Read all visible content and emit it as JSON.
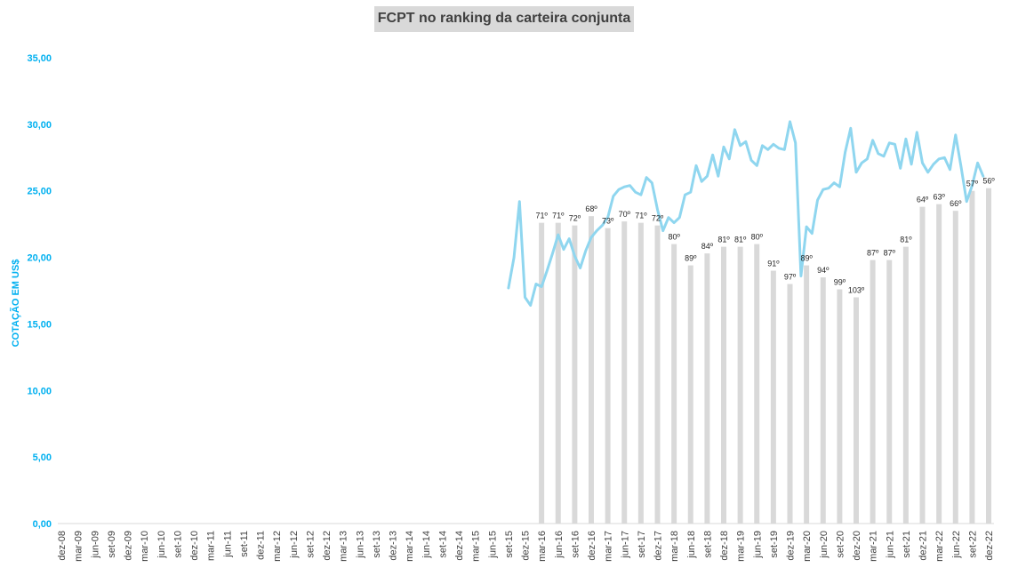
{
  "chart_data": {
    "type": "bar+line",
    "title": "FCPT no ranking da carteira conjunta",
    "ylabel": "COTAÇÃO EM US$",
    "ylim": [
      0,
      35
    ],
    "y_ticks": [
      "0,00",
      "5,00",
      "10,00",
      "15,00",
      "20,00",
      "25,00",
      "30,00",
      "35,00"
    ],
    "x_start": "2008-12",
    "x_end": "2022-12",
    "x_tick_labels": [
      "dez-08",
      "mar-09",
      "jun-09",
      "set-09",
      "dez-09",
      "mar-10",
      "jun-10",
      "set-10",
      "dez-10",
      "mar-11",
      "jun-11",
      "set-11",
      "dez-11",
      "mar-12",
      "jun-12",
      "set-12",
      "dez-12",
      "mar-13",
      "jun-13",
      "set-13",
      "dez-13",
      "mar-14",
      "jun-14",
      "set-14",
      "dez-14",
      "mar-15",
      "jun-15",
      "set-15",
      "dez-15",
      "mar-16",
      "jun-16",
      "set-16",
      "dez-16",
      "mar-17",
      "jun-17",
      "set-17",
      "dez-17",
      "mar-18",
      "jun-18",
      "set-18",
      "dez-18",
      "mar-19",
      "jun-19",
      "set-19",
      "dez-19",
      "mar-20",
      "jun-20",
      "set-20",
      "dez-20",
      "mar-21",
      "jun-21",
      "set-21",
      "dez-21",
      "mar-22",
      "jun-22",
      "set-22",
      "dez-22"
    ],
    "colors": {
      "axis_text": "#00b0f0",
      "line": "#8fd6ef",
      "bar": "#d9d9d9",
      "label": "#262626",
      "title_bg": "#d9d9d9"
    },
    "bars": [
      {
        "x": "2016-03",
        "value": 22.6,
        "label": "71º"
      },
      {
        "x": "2016-06",
        "value": 22.6,
        "label": "71º"
      },
      {
        "x": "2016-09",
        "value": 22.4,
        "label": "72º"
      },
      {
        "x": "2016-12",
        "value": 23.1,
        "label": "68º"
      },
      {
        "x": "2017-03",
        "value": 22.2,
        "label": "73º"
      },
      {
        "x": "2017-06",
        "value": 22.7,
        "label": "70º"
      },
      {
        "x": "2017-09",
        "value": 22.6,
        "label": "71º"
      },
      {
        "x": "2017-12",
        "value": 22.4,
        "label": "72º"
      },
      {
        "x": "2018-03",
        "value": 21.0,
        "label": "80º"
      },
      {
        "x": "2018-06",
        "value": 19.4,
        "label": "89º"
      },
      {
        "x": "2018-09",
        "value": 20.3,
        "label": "84º"
      },
      {
        "x": "2018-12",
        "value": 20.8,
        "label": "81º"
      },
      {
        "x": "2019-03",
        "value": 20.8,
        "label": "81º"
      },
      {
        "x": "2019-06",
        "value": 21.0,
        "label": "80º"
      },
      {
        "x": "2019-09",
        "value": 19.0,
        "label": "91º"
      },
      {
        "x": "2019-12",
        "value": 18.0,
        "label": "97º"
      },
      {
        "x": "2020-03",
        "value": 19.4,
        "label": "89º"
      },
      {
        "x": "2020-06",
        "value": 18.5,
        "label": "94º"
      },
      {
        "x": "2020-09",
        "value": 17.6,
        "label": "99º"
      },
      {
        "x": "2020-12",
        "value": 17.0,
        "label": "103º"
      },
      {
        "x": "2021-03",
        "value": 19.8,
        "label": "87º"
      },
      {
        "x": "2021-06",
        "value": 19.8,
        "label": "87º"
      },
      {
        "x": "2021-09",
        "value": 20.8,
        "label": "81º"
      },
      {
        "x": "2021-12",
        "value": 23.8,
        "label": "64º"
      },
      {
        "x": "2022-03",
        "value": 24.0,
        "label": "63º"
      },
      {
        "x": "2022-06",
        "value": 23.5,
        "label": "66º"
      },
      {
        "x": "2022-09",
        "value": 25.0,
        "label": "57º"
      },
      {
        "x": "2022-12",
        "value": 25.2,
        "label": "56º"
      }
    ],
    "line": [
      [
        "2015-09",
        17.7
      ],
      [
        "2015-10",
        20.0
      ],
      [
        "2015-11",
        24.2
      ],
      [
        "2015-12",
        17.0
      ],
      [
        "2016-01",
        16.4
      ],
      [
        "2016-02",
        18.0
      ],
      [
        "2016-03",
        17.8
      ],
      [
        "2016-04",
        19.0
      ],
      [
        "2016-05",
        20.3
      ],
      [
        "2016-06",
        21.7
      ],
      [
        "2016-07",
        20.6
      ],
      [
        "2016-08",
        21.4
      ],
      [
        "2016-09",
        20.1
      ],
      [
        "2016-10",
        19.2
      ],
      [
        "2016-11",
        20.5
      ],
      [
        "2016-12",
        21.5
      ],
      [
        "2017-01",
        22.0
      ],
      [
        "2017-02",
        22.4
      ],
      [
        "2017-03",
        23.0
      ],
      [
        "2017-04",
        24.6
      ],
      [
        "2017-05",
        25.1
      ],
      [
        "2017-06",
        25.3
      ],
      [
        "2017-07",
        25.4
      ],
      [
        "2017-08",
        24.9
      ],
      [
        "2017-09",
        24.7
      ],
      [
        "2017-10",
        26.0
      ],
      [
        "2017-11",
        25.6
      ],
      [
        "2017-12",
        23.6
      ],
      [
        "2018-01",
        22.0
      ],
      [
        "2018-02",
        23.0
      ],
      [
        "2018-03",
        22.6
      ],
      [
        "2018-04",
        23.0
      ],
      [
        "2018-05",
        24.7
      ],
      [
        "2018-06",
        24.9
      ],
      [
        "2018-07",
        26.9
      ],
      [
        "2018-08",
        25.7
      ],
      [
        "2018-09",
        26.1
      ],
      [
        "2018-10",
        27.7
      ],
      [
        "2018-11",
        26.1
      ],
      [
        "2018-12",
        28.3
      ],
      [
        "2019-01",
        27.4
      ],
      [
        "2019-02",
        29.6
      ],
      [
        "2019-03",
        28.4
      ],
      [
        "2019-04",
        28.7
      ],
      [
        "2019-05",
        27.3
      ],
      [
        "2019-06",
        26.9
      ],
      [
        "2019-07",
        28.4
      ],
      [
        "2019-08",
        28.1
      ],
      [
        "2019-09",
        28.5
      ],
      [
        "2019-10",
        28.2
      ],
      [
        "2019-11",
        28.1
      ],
      [
        "2019-12",
        30.2
      ],
      [
        "2020-01",
        28.6
      ],
      [
        "2020-02",
        18.6
      ],
      [
        "2020-03",
        22.3
      ],
      [
        "2020-04",
        21.8
      ],
      [
        "2020-05",
        24.3
      ],
      [
        "2020-06",
        25.1
      ],
      [
        "2020-07",
        25.2
      ],
      [
        "2020-08",
        25.6
      ],
      [
        "2020-09",
        25.3
      ],
      [
        "2020-10",
        27.9
      ],
      [
        "2020-11",
        29.7
      ],
      [
        "2020-12",
        26.4
      ],
      [
        "2021-01",
        27.1
      ],
      [
        "2021-02",
        27.4
      ],
      [
        "2021-03",
        28.8
      ],
      [
        "2021-04",
        27.8
      ],
      [
        "2021-05",
        27.6
      ],
      [
        "2021-06",
        28.6
      ],
      [
        "2021-07",
        28.5
      ],
      [
        "2021-08",
        26.7
      ],
      [
        "2021-09",
        28.9
      ],
      [
        "2021-10",
        27.0
      ],
      [
        "2021-11",
        29.4
      ],
      [
        "2021-12",
        27.1
      ],
      [
        "2022-01",
        26.4
      ],
      [
        "2022-02",
        27.0
      ],
      [
        "2022-03",
        27.4
      ],
      [
        "2022-04",
        27.5
      ],
      [
        "2022-05",
        26.6
      ],
      [
        "2022-06",
        29.2
      ],
      [
        "2022-07",
        26.8
      ],
      [
        "2022-08",
        24.2
      ],
      [
        "2022-09",
        25.4
      ],
      [
        "2022-10",
        27.1
      ],
      [
        "2022-11",
        26.1
      ]
    ]
  }
}
